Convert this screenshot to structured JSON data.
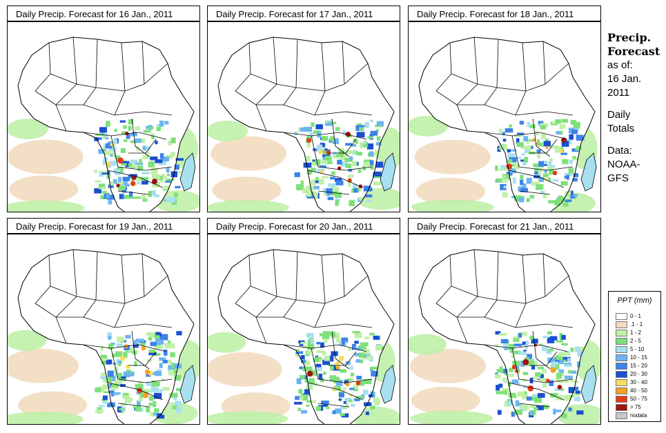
{
  "panels": [
    {
      "title": "Daily Precip. Forecast for  16 Jan., 2011"
    },
    {
      "title": "Daily Precip. Forecast for  17 Jan., 2011"
    },
    {
      "title": "Daily Precip. Forecast for  18 Jan., 2011"
    },
    {
      "title": "Daily Precip. Forecast for  19 Jan., 2011"
    },
    {
      "title": "Daily Precip. Forecast for  20 Jan., 2011"
    },
    {
      "title": "Daily Precip. Forecast for  21 Jan., 2011"
    }
  ],
  "side": {
    "line1": "Precip.",
    "line2": "Forecast",
    "as_of": "as of:",
    "date1": "16 Jan.",
    "date2": "2011",
    "daily": "Daily",
    "totals": "Totals",
    "data": "Data:",
    "noaa": "NOAA-",
    "gfs": "GFS"
  },
  "legend": {
    "title": "PPT (mm)",
    "items": [
      {
        "label": "0 - 1",
        "color": "#ffffff"
      },
      {
        "label": ".1 - 1",
        "color": "#f2dcc0"
      },
      {
        "label": "1 - 2",
        "color": "#bff0a8"
      },
      {
        "label": "2 - 5",
        "color": "#7ee07a"
      },
      {
        "label": "5 - 10",
        "color": "#a8e0f0"
      },
      {
        "label": "10 - 15",
        "color": "#6cb4f0"
      },
      {
        "label": "15 - 20",
        "color": "#3c82e8"
      },
      {
        "label": "20 - 30",
        "color": "#1a4fd0"
      },
      {
        "label": "30 - 40",
        "color": "#f5df60"
      },
      {
        "label": "40 - 50",
        "color": "#f5a020"
      },
      {
        "label": "50 - 75",
        "color": "#e63c14"
      },
      {
        "label": "> 75",
        "color": "#a0140c"
      },
      {
        "label": "nodata",
        "color": "#c8c8c8"
      }
    ]
  }
}
